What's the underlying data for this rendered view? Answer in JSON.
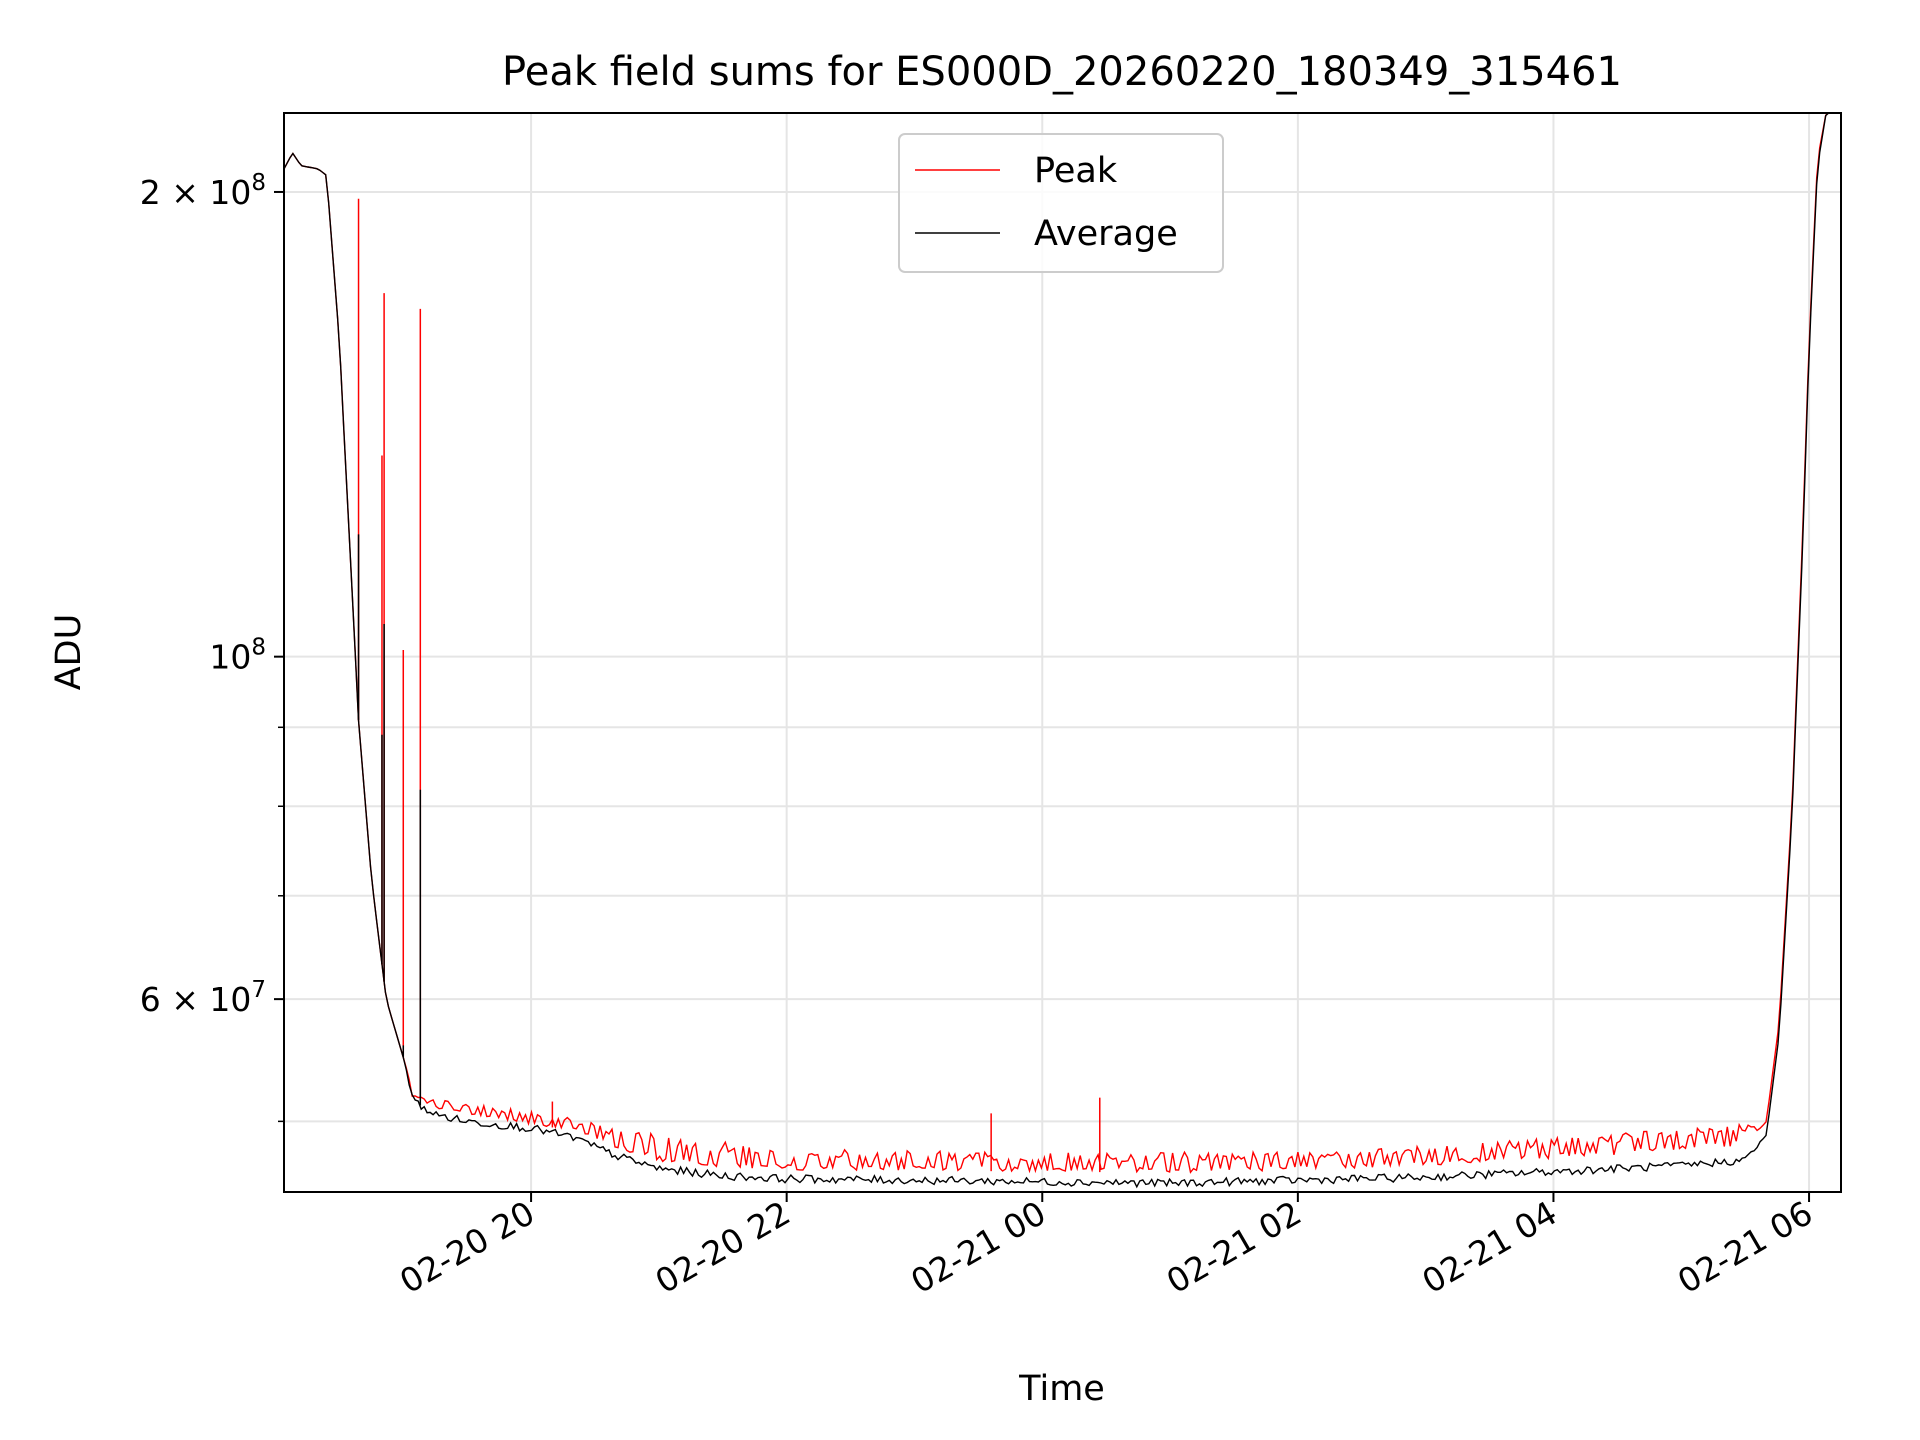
{
  "chart_data": {
    "type": "line",
    "title": "Peak field sums for ES000D_20260220_180349_315461",
    "xlabel": "Time",
    "ylabel": "ADU",
    "yscale": "log",
    "grid": true,
    "legend_position": "top-center",
    "xlim": [
      "2026-02-20 18:04",
      "2026-02-21 06:15"
    ],
    "ylim": [
      45000000,
      225000000
    ],
    "x_ticks": [
      "02-20 20",
      "02-20 22",
      "02-21 00",
      "02-21 02",
      "02-21 04",
      "02-21 06"
    ],
    "x_tick_times": [
      "2026-02-20 20:00",
      "2026-02-20 22:00",
      "2026-02-21 00:00",
      "2026-02-21 02:00",
      "2026-02-21 04:00",
      "2026-02-21 06:00"
    ],
    "y_major_ticks": [
      {
        "value": 200000000,
        "mantissa": "2",
        "exponent": "8"
      },
      {
        "value": 100000000,
        "mantissa": "",
        "exponent": "8"
      },
      {
        "value": 60000000,
        "mantissa": "6",
        "exponent": "7"
      }
    ],
    "y_minor_gridlines": [
      90000000,
      80000000,
      70000000,
      50000000
    ],
    "series": [
      {
        "name": "Peak",
        "color": "#ff0000",
        "baseline": [
          [
            "2026-02-20 18:04",
            207000000
          ],
          [
            "2026-02-20 18:08",
            212000000
          ],
          [
            "2026-02-20 18:12",
            208000000
          ],
          [
            "2026-02-20 18:20",
            207000000
          ],
          [
            "2026-02-20 18:24",
            205000000
          ],
          [
            "2026-02-20 18:30",
            160000000
          ],
          [
            "2026-02-20 18:36",
            110000000
          ],
          [
            "2026-02-20 18:39",
            91000000
          ],
          [
            "2026-02-20 18:45",
            72000000
          ],
          [
            "2026-02-20 18:52",
            60000000
          ],
          [
            "2026-02-20 19:00",
            55000000
          ],
          [
            "2026-02-20 19:05",
            52000000
          ],
          [
            "2026-02-20 19:15",
            51000000
          ],
          [
            "2026-02-20 19:30",
            50500000
          ],
          [
            "2026-02-20 20:00",
            49800000
          ],
          [
            "2026-02-20 20:20",
            49300000
          ],
          [
            "2026-02-20 20:40",
            48000000
          ],
          [
            "2026-02-20 21:00",
            47100000
          ],
          [
            "2026-02-20 21:30",
            46700000
          ],
          [
            "2026-02-20 22:00",
            46500000
          ],
          [
            "2026-02-21 00:00",
            46400000
          ],
          [
            "2026-02-21 01:00",
            46300000
          ],
          [
            "2026-02-21 02:00",
            46500000
          ],
          [
            "2026-02-21 03:00",
            46800000
          ],
          [
            "2026-02-21 04:00",
            47300000
          ],
          [
            "2026-02-21 05:00",
            47800000
          ],
          [
            "2026-02-21 05:30",
            48200000
          ],
          [
            "2026-02-21 05:40",
            50000000
          ],
          [
            "2026-02-21 05:46",
            58000000
          ],
          [
            "2026-02-21 05:52",
            80000000
          ],
          [
            "2026-02-21 05:57",
            120000000
          ],
          [
            "2026-02-21 06:00",
            160000000
          ],
          [
            "2026-02-21 06:04",
            210000000
          ],
          [
            "2026-02-21 06:08",
            225000000
          ],
          [
            "2026-02-21 06:15",
            225000000
          ]
        ],
        "spikes": [
          [
            "2026-02-20 18:39",
            198000000
          ],
          [
            "2026-02-20 18:50",
            135000000
          ],
          [
            "2026-02-20 18:51",
            172000000
          ],
          [
            "2026-02-20 19:00",
            101000000
          ],
          [
            "2026-02-20 19:08",
            168000000
          ],
          [
            "2026-02-20 20:10",
            51500000
          ],
          [
            "2026-02-20 23:36",
            50600000
          ],
          [
            "2026-02-21 00:27",
            51800000
          ]
        ],
        "noise_band_upper": [
          [
            "2026-02-20 19:00",
            52000000
          ],
          [
            "2026-02-20 20:00",
            50800000
          ],
          [
            "2026-02-20 21:00",
            49000000
          ],
          [
            "2026-02-20 22:00",
            48000000
          ],
          [
            "2026-02-21 00:00",
            47700000
          ],
          [
            "2026-02-21 02:00",
            47800000
          ],
          [
            "2026-02-21 04:00",
            48800000
          ],
          [
            "2026-02-21 05:30",
            49800000
          ]
        ]
      },
      {
        "name": "Average",
        "color": "#000000",
        "baseline": [
          [
            "2026-02-20 18:04",
            207000000
          ],
          [
            "2026-02-20 18:08",
            212000000
          ],
          [
            "2026-02-20 18:12",
            208000000
          ],
          [
            "2026-02-20 18:20",
            207000000
          ],
          [
            "2026-02-20 18:24",
            205000000
          ],
          [
            "2026-02-20 18:30",
            160000000
          ],
          [
            "2026-02-20 18:36",
            110000000
          ],
          [
            "2026-02-20 18:39",
            91000000
          ],
          [
            "2026-02-20 18:45",
            72000000
          ],
          [
            "2026-02-20 18:52",
            60000000
          ],
          [
            "2026-02-20 19:00",
            55000000
          ],
          [
            "2026-02-20 19:05",
            51500000
          ],
          [
            "2026-02-20 19:15",
            50500000
          ],
          [
            "2026-02-20 19:30",
            50000000
          ],
          [
            "2026-02-20 20:00",
            49500000
          ],
          [
            "2026-02-20 20:20",
            48800000
          ],
          [
            "2026-02-20 20:40",
            47500000
          ],
          [
            "2026-02-20 21:00",
            46600000
          ],
          [
            "2026-02-20 21:30",
            46100000
          ],
          [
            "2026-02-20 22:00",
            45900000
          ],
          [
            "2026-02-21 00:00",
            45700000
          ],
          [
            "2026-02-21 01:00",
            45600000
          ],
          [
            "2026-02-21 02:00",
            45800000
          ],
          [
            "2026-02-21 03:00",
            46000000
          ],
          [
            "2026-02-21 04:00",
            46400000
          ],
          [
            "2026-02-21 05:00",
            46800000
          ],
          [
            "2026-02-21 05:30",
            47200000
          ],
          [
            "2026-02-21 05:40",
            49000000
          ],
          [
            "2026-02-21 05:46",
            57000000
          ],
          [
            "2026-02-21 05:52",
            79000000
          ],
          [
            "2026-02-21 05:57",
            118000000
          ],
          [
            "2026-02-21 06:00",
            158000000
          ],
          [
            "2026-02-21 06:04",
            208000000
          ],
          [
            "2026-02-21 06:08",
            225000000
          ],
          [
            "2026-02-21 06:15",
            225000000
          ]
        ],
        "spikes": [
          [
            "2026-02-20 18:39",
            120000000
          ],
          [
            "2026-02-20 18:50",
            89000000
          ],
          [
            "2026-02-20 18:51",
            105000000
          ],
          [
            "2026-02-20 19:00",
            56000000
          ],
          [
            "2026-02-20 19:08",
            82000000
          ]
        ]
      }
    ]
  }
}
